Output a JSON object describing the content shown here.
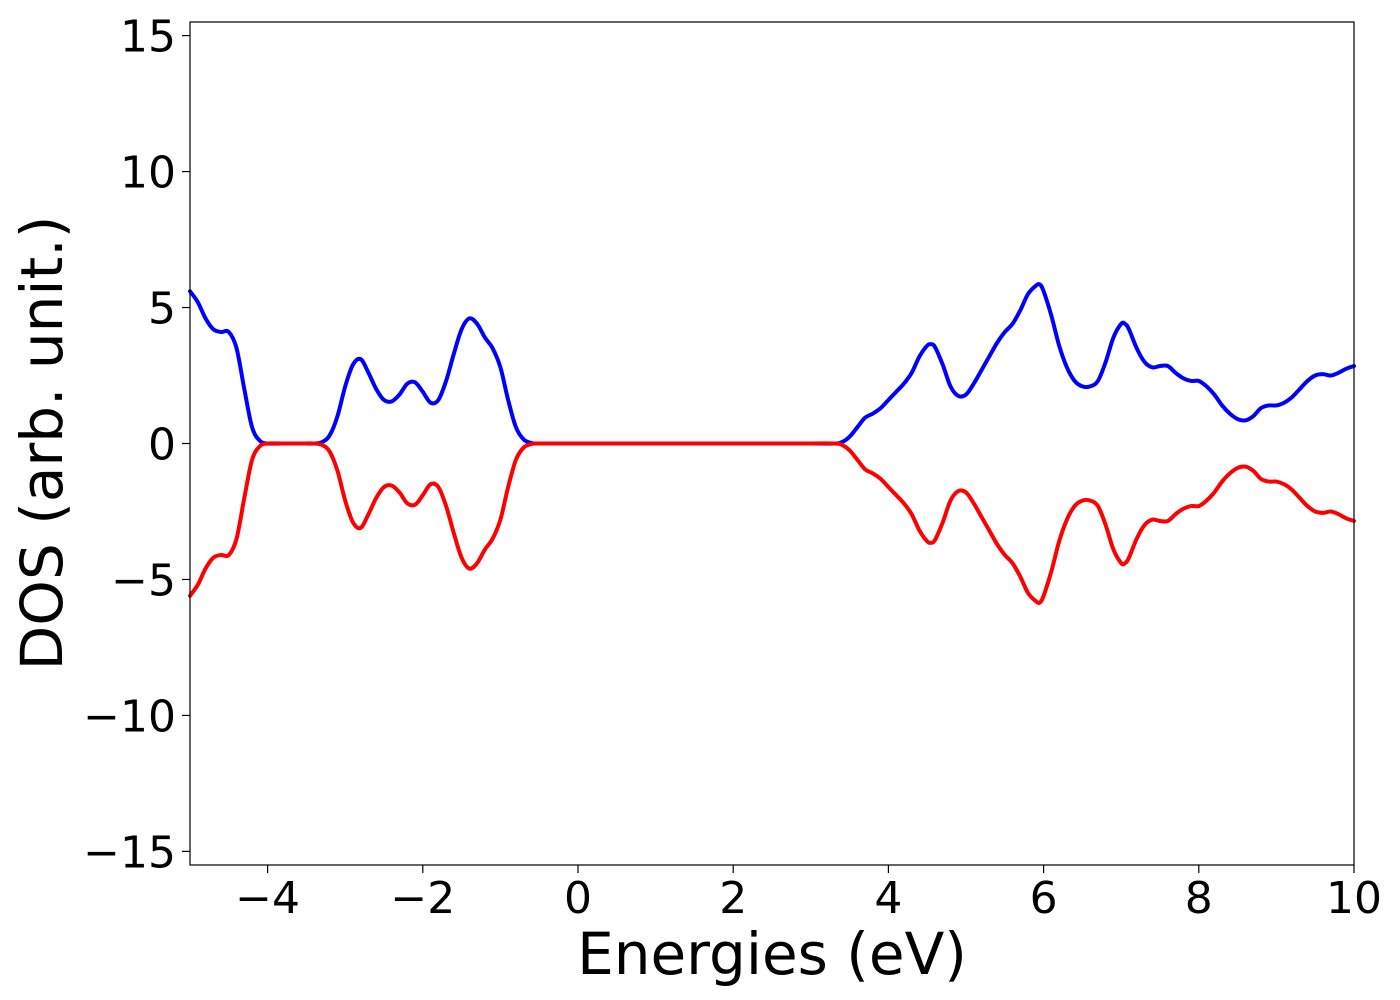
{
  "chart_data": {
    "type": "line",
    "title": "",
    "xlabel": "Energies (eV)",
    "ylabel": "DOS (arb. unit.)",
    "xlim": [
      -5,
      10
    ],
    "ylim": [
      -15.5,
      15.5
    ],
    "xticks": [
      -4,
      -2,
      0,
      2,
      4,
      6,
      8,
      10
    ],
    "xtick_labels": [
      "−4",
      "−2",
      "0",
      "2",
      "4",
      "6",
      "8",
      "10"
    ],
    "yticks": [
      15,
      10,
      5,
      0,
      -5,
      -10,
      -15
    ],
    "ytick_labels": [
      "15",
      "10",
      "5",
      "0",
      "−5",
      "−10",
      "−15"
    ],
    "grid": false,
    "legend": "none",
    "series": [
      {
        "color": "#0000ff",
        "x": [
          -5.0,
          -4.9,
          -4.8,
          -4.7,
          -4.6,
          -4.5,
          -4.4,
          -4.3,
          -4.2,
          -4.1,
          -4.0,
          -3.8,
          -3.6,
          -3.4,
          -3.3,
          -3.2,
          -3.1,
          -3.0,
          -2.9,
          -2.8,
          -2.7,
          -2.6,
          -2.5,
          -2.4,
          -2.3,
          -2.2,
          -2.1,
          -2.0,
          -1.9,
          -1.8,
          -1.7,
          -1.6,
          -1.5,
          -1.4,
          -1.3,
          -1.2,
          -1.1,
          -1.0,
          -0.9,
          -0.8,
          -0.7,
          -0.6,
          -0.5,
          0.0,
          1.0,
          2.0,
          3.0,
          3.3,
          3.4,
          3.5,
          3.6,
          3.7,
          3.8,
          3.9,
          4.0,
          4.1,
          4.2,
          4.3,
          4.4,
          4.5,
          4.55,
          4.6,
          4.7,
          4.8,
          4.9,
          5.0,
          5.1,
          5.2,
          5.3,
          5.4,
          5.5,
          5.6,
          5.7,
          5.8,
          5.9,
          5.95,
          6.0,
          6.1,
          6.2,
          6.3,
          6.4,
          6.5,
          6.6,
          6.7,
          6.8,
          6.9,
          7.0,
          7.05,
          7.1,
          7.2,
          7.3,
          7.4,
          7.5,
          7.6,
          7.7,
          7.8,
          7.9,
          8.0,
          8.1,
          8.2,
          8.3,
          8.4,
          8.5,
          8.6,
          8.7,
          8.8,
          8.9,
          9.0,
          9.1,
          9.2,
          9.3,
          9.4,
          9.5,
          9.6,
          9.7,
          9.8,
          9.9,
          10.0
        ],
        "y": [
          5.6,
          5.2,
          4.6,
          4.2,
          4.1,
          4.1,
          3.5,
          2.0,
          0.6,
          0.1,
          0.0,
          0.0,
          0.0,
          0.0,
          0.05,
          0.3,
          1.0,
          2.1,
          2.9,
          3.1,
          2.6,
          2.0,
          1.6,
          1.55,
          1.8,
          2.2,
          2.25,
          1.9,
          1.5,
          1.6,
          2.3,
          3.3,
          4.2,
          4.6,
          4.4,
          3.9,
          3.5,
          2.8,
          1.6,
          0.6,
          0.15,
          0.02,
          0.0,
          0.0,
          0.0,
          0.0,
          0.0,
          0.0,
          0.05,
          0.25,
          0.6,
          0.95,
          1.1,
          1.3,
          1.6,
          1.9,
          2.2,
          2.6,
          3.2,
          3.6,
          3.65,
          3.55,
          2.9,
          2.1,
          1.75,
          1.8,
          2.2,
          2.7,
          3.2,
          3.7,
          4.1,
          4.4,
          4.9,
          5.5,
          5.8,
          5.85,
          5.6,
          4.7,
          3.6,
          2.8,
          2.3,
          2.1,
          2.1,
          2.3,
          3.0,
          3.9,
          4.4,
          4.4,
          4.2,
          3.5,
          3.0,
          2.8,
          2.85,
          2.85,
          2.6,
          2.4,
          2.3,
          2.3,
          2.1,
          1.8,
          1.4,
          1.1,
          0.9,
          0.85,
          1.0,
          1.3,
          1.4,
          1.4,
          1.5,
          1.7,
          2.0,
          2.3,
          2.5,
          2.55,
          2.5,
          2.6,
          2.75,
          2.85
        ]
      },
      {
        "color": "#ff0000",
        "x": [
          -5.0,
          -4.9,
          -4.8,
          -4.7,
          -4.6,
          -4.5,
          -4.4,
          -4.3,
          -4.2,
          -4.1,
          -4.0,
          -3.8,
          -3.6,
          -3.4,
          -3.3,
          -3.2,
          -3.1,
          -3.0,
          -2.9,
          -2.8,
          -2.7,
          -2.6,
          -2.5,
          -2.4,
          -2.3,
          -2.2,
          -2.1,
          -2.0,
          -1.9,
          -1.8,
          -1.7,
          -1.6,
          -1.5,
          -1.4,
          -1.3,
          -1.2,
          -1.1,
          -1.0,
          -0.9,
          -0.8,
          -0.7,
          -0.6,
          -0.5,
          0.0,
          1.0,
          2.0,
          3.0,
          3.3,
          3.4,
          3.5,
          3.6,
          3.7,
          3.8,
          3.9,
          4.0,
          4.1,
          4.2,
          4.3,
          4.4,
          4.5,
          4.55,
          4.6,
          4.7,
          4.8,
          4.9,
          5.0,
          5.1,
          5.2,
          5.3,
          5.4,
          5.5,
          5.6,
          5.7,
          5.8,
          5.9,
          5.95,
          6.0,
          6.1,
          6.2,
          6.3,
          6.4,
          6.5,
          6.6,
          6.7,
          6.8,
          6.9,
          7.0,
          7.05,
          7.1,
          7.2,
          7.3,
          7.4,
          7.5,
          7.6,
          7.7,
          7.8,
          7.9,
          8.0,
          8.1,
          8.2,
          8.3,
          8.4,
          8.5,
          8.6,
          8.7,
          8.8,
          8.9,
          9.0,
          9.1,
          9.2,
          9.3,
          9.4,
          9.5,
          9.6,
          9.7,
          9.8,
          9.9,
          10.0
        ],
        "y": [
          -5.6,
          -5.2,
          -4.6,
          -4.2,
          -4.1,
          -4.1,
          -3.5,
          -2.0,
          -0.6,
          -0.1,
          0.0,
          0.0,
          0.0,
          0.0,
          -0.05,
          -0.3,
          -1.0,
          -2.1,
          -2.9,
          -3.1,
          -2.6,
          -2.0,
          -1.6,
          -1.55,
          -1.8,
          -2.2,
          -2.25,
          -1.9,
          -1.5,
          -1.6,
          -2.3,
          -3.3,
          -4.2,
          -4.6,
          -4.4,
          -3.9,
          -3.5,
          -2.8,
          -1.6,
          -0.6,
          -0.15,
          -0.02,
          0.0,
          0.0,
          0.0,
          0.0,
          0.0,
          0.0,
          -0.05,
          -0.25,
          -0.6,
          -0.95,
          -1.1,
          -1.3,
          -1.6,
          -1.9,
          -2.2,
          -2.6,
          -3.2,
          -3.6,
          -3.65,
          -3.55,
          -2.9,
          -2.1,
          -1.75,
          -1.8,
          -2.2,
          -2.7,
          -3.2,
          -3.7,
          -4.1,
          -4.4,
          -4.9,
          -5.5,
          -5.8,
          -5.85,
          -5.6,
          -4.7,
          -3.6,
          -2.8,
          -2.3,
          -2.1,
          -2.1,
          -2.3,
          -3.0,
          -3.9,
          -4.4,
          -4.4,
          -4.2,
          -3.5,
          -3.0,
          -2.8,
          -2.85,
          -2.85,
          -2.6,
          -2.4,
          -2.3,
          -2.3,
          -2.1,
          -1.8,
          -1.4,
          -1.1,
          -0.9,
          -0.85,
          -1.0,
          -1.3,
          -1.4,
          -1.4,
          -1.5,
          -1.7,
          -2.0,
          -2.3,
          -2.5,
          -2.55,
          -2.5,
          -2.6,
          -2.75,
          -2.85
        ]
      }
    ]
  }
}
